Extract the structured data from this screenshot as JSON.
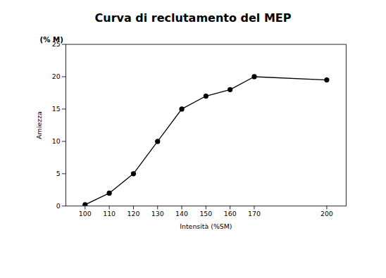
{
  "chart_data": {
    "type": "line",
    "title": "Curva di reclutamento del MEP",
    "xlabel": "Intensità (%SM)",
    "ylabel": "Amiezza",
    "annotations": [
      "(% M)"
    ],
    "x": [
      100,
      110,
      120,
      130,
      140,
      150,
      160,
      170,
      200
    ],
    "values": [
      0.2,
      2.0,
      5.0,
      10.0,
      15.0,
      17.0,
      18.0,
      20.0,
      19.5
    ],
    "color": "#000000",
    "marker": "circle",
    "xlim": [
      92,
      208
    ],
    "ylim": [
      0,
      25
    ],
    "xticks": [
      100,
      110,
      120,
      130,
      140,
      150,
      160,
      170,
      200
    ],
    "yticks": [
      0,
      5,
      10,
      15,
      20,
      25
    ],
    "grid": false
  }
}
